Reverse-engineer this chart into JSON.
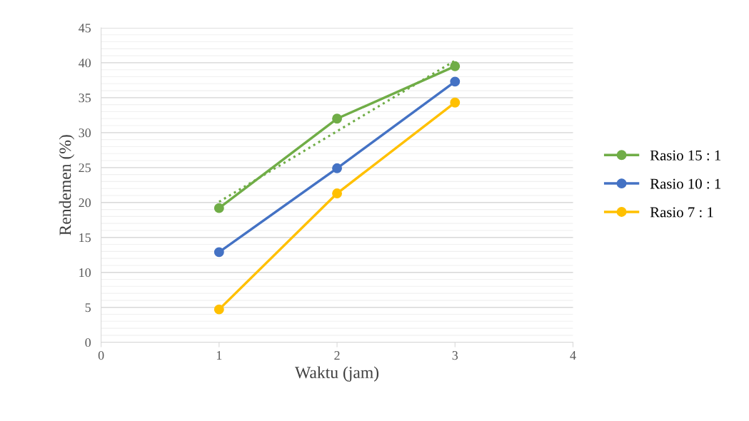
{
  "chart_data": {
    "type": "line",
    "xlabel": "Waktu (jam)",
    "ylabel": "Rendemen (%)",
    "series": [
      {
        "name": "Rasio 15 : 1",
        "color": "#70ad47",
        "x": [
          1,
          2,
          3
        ],
        "values": [
          19.2,
          32.0,
          39.5
        ]
      },
      {
        "name": "Rasio 10 : 1",
        "color": "#4472c4",
        "x": [
          1,
          2,
          3
        ],
        "values": [
          12.9,
          24.9,
          37.3
        ]
      },
      {
        "name": "Rasio 7 : 1",
        "color": "#ffc000",
        "x": [
          1,
          2,
          3
        ],
        "values": [
          4.7,
          21.3,
          34.3
        ]
      },
      {
        "color": "#70ad47",
        "x": [
          1,
          3
        ],
        "values": [
          20.1,
          40.3
        ],
        "line_style": "dotted",
        "marker": "none"
      }
    ],
    "xlim": [
      0,
      4
    ],
    "xticks": [
      0,
      1,
      2,
      3,
      4
    ],
    "ylim": [
      0,
      45
    ],
    "yticks": [
      0,
      5,
      10,
      15,
      20,
      25,
      30,
      35,
      40,
      45
    ],
    "grid": "y",
    "legend": "right",
    "marker": "circle",
    "line_style": "solid"
  }
}
